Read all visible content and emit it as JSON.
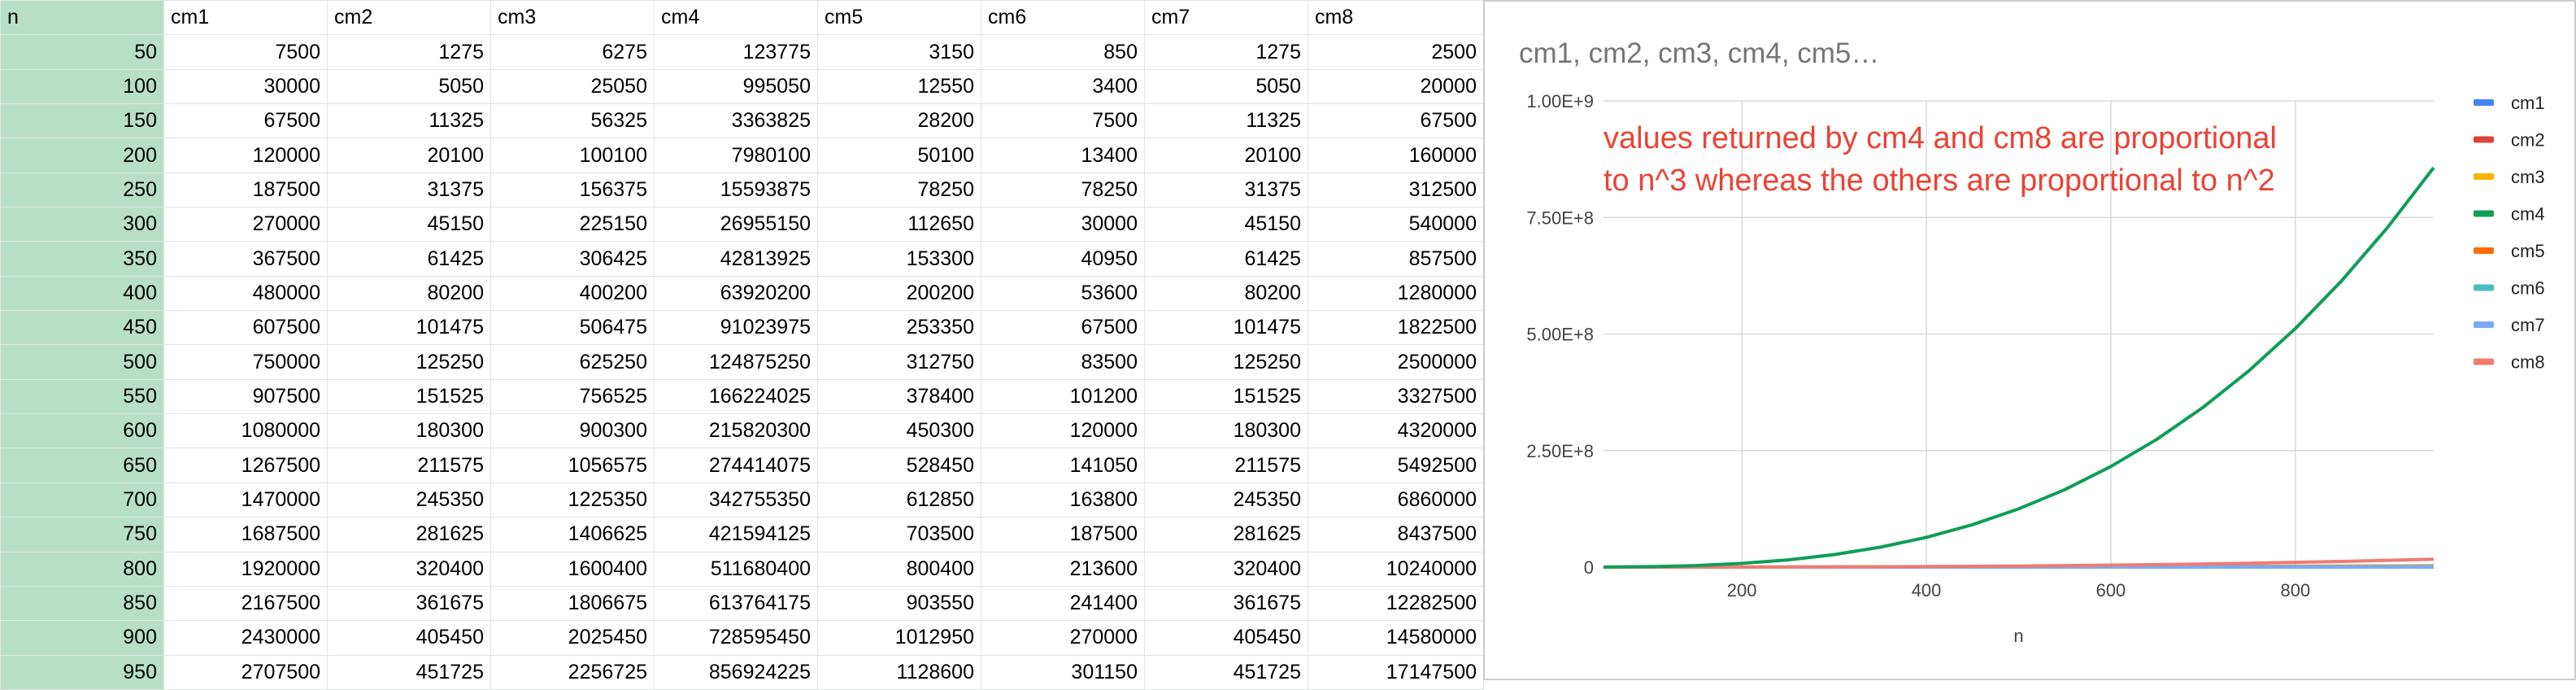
{
  "sheet": {
    "columns": [
      "n",
      "cm1",
      "cm2",
      "cm3",
      "cm4",
      "cm5",
      "cm6",
      "cm7",
      "cm8"
    ],
    "rows": [
      [
        50,
        7500,
        1275,
        6275,
        123775,
        3150,
        850,
        1275,
        2500
      ],
      [
        100,
        30000,
        5050,
        25050,
        995050,
        12550,
        3400,
        5050,
        20000
      ],
      [
        150,
        67500,
        11325,
        56325,
        3363825,
        28200,
        7500,
        11325,
        67500
      ],
      [
        200,
        120000,
        20100,
        100100,
        7980100,
        50100,
        13400,
        20100,
        160000
      ],
      [
        250,
        187500,
        31375,
        156375,
        15593875,
        78250,
        78250,
        31375,
        312500
      ],
      [
        300,
        270000,
        45150,
        225150,
        26955150,
        112650,
        30000,
        45150,
        540000
      ],
      [
        350,
        367500,
        61425,
        306425,
        42813925,
        153300,
        40950,
        61425,
        857500
      ],
      [
        400,
        480000,
        80200,
        400200,
        63920200,
        200200,
        53600,
        80200,
        1280000
      ],
      [
        450,
        607500,
        101475,
        506475,
        91023975,
        253350,
        67500,
        101475,
        1822500
      ],
      [
        500,
        750000,
        125250,
        625250,
        124875250,
        312750,
        83500,
        125250,
        2500000
      ],
      [
        550,
        907500,
        151525,
        756525,
        166224025,
        378400,
        101200,
        151525,
        3327500
      ],
      [
        600,
        1080000,
        180300,
        900300,
        215820300,
        450300,
        120000,
        180300,
        4320000
      ],
      [
        650,
        1267500,
        211575,
        1056575,
        274414075,
        528450,
        141050,
        211575,
        5492500
      ],
      [
        700,
        1470000,
        245350,
        1225350,
        342755350,
        612850,
        163800,
        245350,
        6860000
      ],
      [
        750,
        1687500,
        281625,
        1406625,
        421594125,
        703500,
        187500,
        281625,
        8437500
      ],
      [
        800,
        1920000,
        320400,
        1600400,
        511680400,
        800400,
        213600,
        320400,
        10240000
      ],
      [
        850,
        2167500,
        361675,
        1806675,
        613764175,
        903550,
        241400,
        361675,
        12282500
      ],
      [
        900,
        2430000,
        405450,
        2025450,
        728595450,
        1012950,
        270000,
        405450,
        14580000
      ],
      [
        950,
        2707500,
        451725,
        2256725,
        856924225,
        1128600,
        301150,
        451725,
        17147500
      ]
    ]
  },
  "chart_data": {
    "type": "line",
    "title": "cm1, cm2, cm3, cm4, cm5…",
    "xlabel": "n",
    "ylabel": "",
    "xlim": [
      50,
      950
    ],
    "ylim": [
      0,
      1000000000
    ],
    "x_ticks": [
      200,
      400,
      600,
      800
    ],
    "x_tick_labels": [
      "200",
      "400",
      "600",
      "800"
    ],
    "y_ticks": [
      0,
      250000000,
      500000000,
      750000000,
      1000000000
    ],
    "y_tick_labels": [
      "0",
      "2.50E+8",
      "5.00E+8",
      "7.50E+8",
      "1.00E+9"
    ],
    "grid": true,
    "legend_position": "right",
    "annotation": {
      "lines": [
        "values returned by cm4 and cm8 are proportional",
        "to n^3 whereas the others are proportional to n^2"
      ],
      "color": "#ea4335"
    },
    "x": [
      50,
      100,
      150,
      200,
      250,
      300,
      350,
      400,
      450,
      500,
      550,
      600,
      650,
      700,
      750,
      800,
      850,
      900,
      950
    ],
    "series": [
      {
        "name": "cm1",
        "color": "#4285f4",
        "column": 1
      },
      {
        "name": "cm2",
        "color": "#db4437",
        "column": 2
      },
      {
        "name": "cm3",
        "color": "#f4b400",
        "column": 3
      },
      {
        "name": "cm4",
        "color": "#0f9d58",
        "column": 4
      },
      {
        "name": "cm5",
        "color": "#ff6d01",
        "column": 5
      },
      {
        "name": "cm6",
        "color": "#46bdc6",
        "column": 6
      },
      {
        "name": "cm7",
        "color": "#7baaf7",
        "column": 7
      },
      {
        "name": "cm8",
        "color": "#f07b72",
        "column": 8
      }
    ]
  },
  "colors": {
    "index_column_bg": "#b7dfc8",
    "gridline": "#e2e3e3",
    "chart_title": "#757575",
    "axis_text": "#444444"
  }
}
